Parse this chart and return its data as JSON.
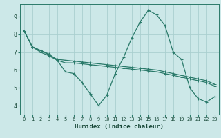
{
  "xlabel": "Humidex (Indice chaleur)",
  "bg_color": "#cce8e8",
  "grid_color": "#aacfcf",
  "line_color": "#2a7a6a",
  "xlim": [
    -0.5,
    23.5
  ],
  "ylim": [
    3.5,
    9.7
  ],
  "yticks": [
    4,
    5,
    6,
    7,
    8,
    9
  ],
  "xticks": [
    0,
    1,
    2,
    3,
    4,
    5,
    6,
    7,
    8,
    9,
    10,
    11,
    12,
    13,
    14,
    15,
    16,
    17,
    18,
    19,
    20,
    21,
    22,
    23
  ],
  "series_zigzag": [
    8.2,
    7.3,
    7.1,
    6.9,
    6.55,
    5.9,
    5.8,
    5.3,
    4.65,
    4.0,
    4.6,
    5.8,
    6.7,
    7.8,
    8.7,
    9.35,
    9.1,
    8.5,
    7.0,
    6.6,
    5.0,
    4.4,
    4.2,
    4.5
  ],
  "series_line1": [
    8.2,
    7.3,
    7.1,
    6.85,
    6.6,
    6.55,
    6.5,
    6.45,
    6.4,
    6.35,
    6.3,
    6.25,
    6.2,
    6.15,
    6.1,
    6.05,
    6.0,
    5.9,
    5.8,
    5.7,
    5.6,
    5.5,
    5.4,
    5.2
  ],
  "series_line2": [
    8.2,
    7.3,
    7.0,
    6.8,
    6.55,
    6.4,
    6.4,
    6.35,
    6.3,
    6.25,
    6.2,
    6.15,
    6.1,
    6.05,
    6.0,
    5.95,
    5.9,
    5.8,
    5.7,
    5.6,
    5.5,
    5.4,
    5.3,
    5.1
  ]
}
